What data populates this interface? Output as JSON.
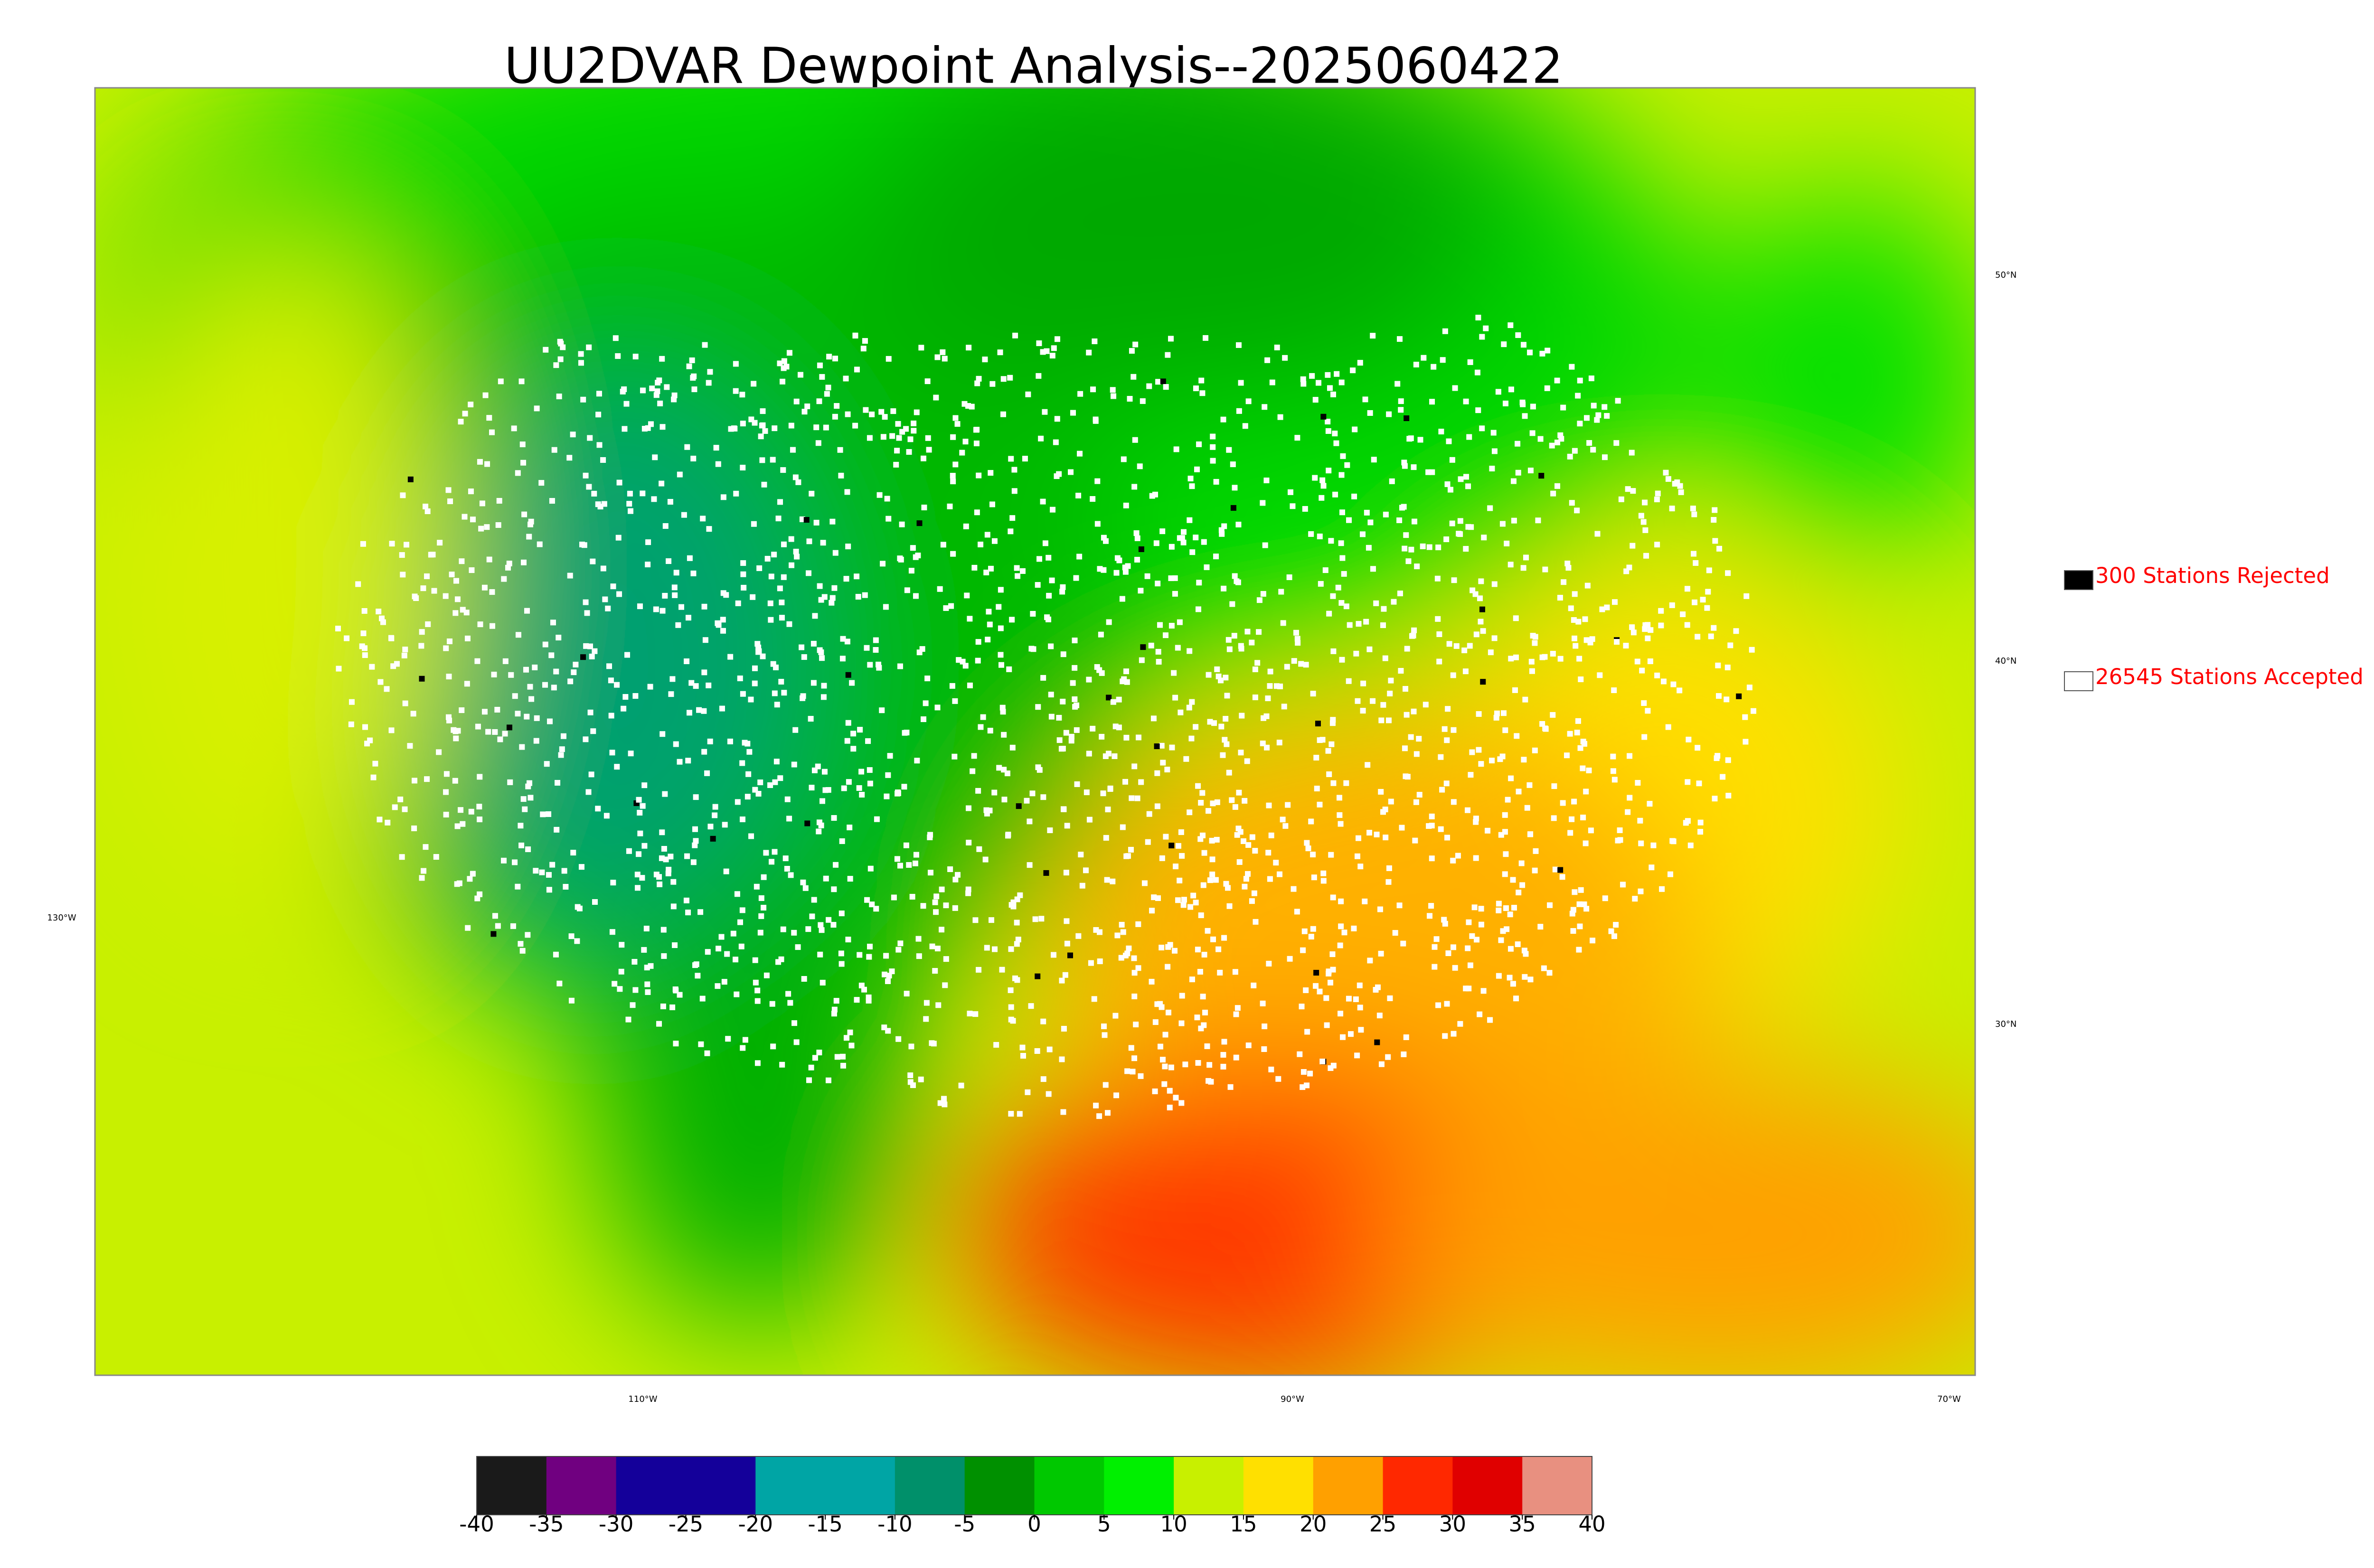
{
  "title": "UU2DVAR Dewpoint Analysis--2025060422",
  "legend": {
    "entries": [
      "300 Stations Rejected",
      "26545 Stations Accepted"
    ],
    "colors": [
      "#000000",
      "#ffffff"
    ],
    "text_color": "#ff0000"
  },
  "graticule_labels": {
    "lat": [
      "50°N",
      "40°N",
      "30°N"
    ],
    "lon": [
      "130°W",
      "110°W",
      "90°W",
      "70°W"
    ]
  },
  "colorbar": {
    "range": [
      -40,
      40
    ],
    "ticks": [
      -40,
      -35,
      -30,
      -25,
      -20,
      -15,
      -10,
      -5,
      0,
      5,
      10,
      15,
      20,
      25,
      30,
      35,
      40
    ],
    "colors": [
      "#1a1a1a",
      "#700080",
      "#14009a",
      "#14009a",
      "#00a5a5",
      "#00a5a5",
      "#00906a",
      "#009000",
      "#00c800",
      "#00f000",
      "#c8f000",
      "#ffe000",
      "#ffa000",
      "#ff2800",
      "#e00000",
      "#e89080"
    ]
  }
}
